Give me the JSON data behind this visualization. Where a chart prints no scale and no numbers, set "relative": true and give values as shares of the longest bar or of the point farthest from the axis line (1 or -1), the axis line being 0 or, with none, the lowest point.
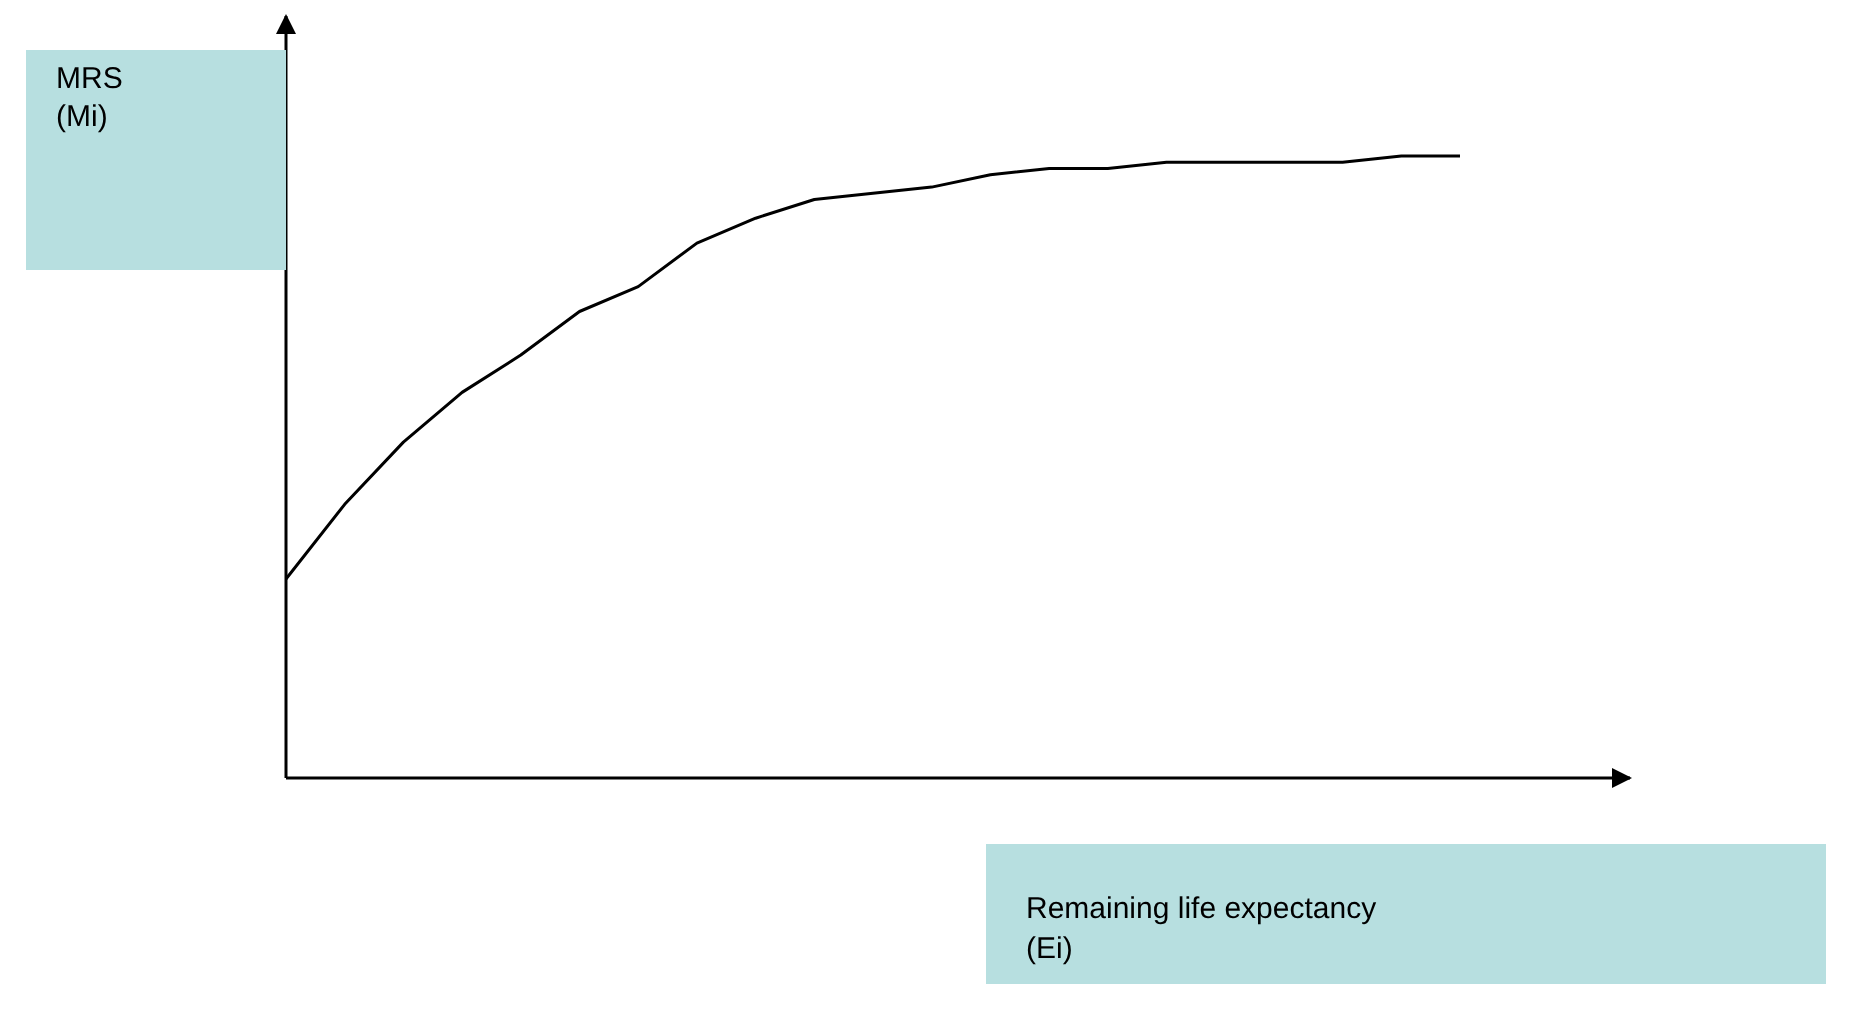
{
  "chart_data": {
    "type": "line",
    "relative": true,
    "ylabel": "MRS\n(Mi)",
    "xlabel": "Remaining life expectancy\n(Ei)",
    "categories": [
      null,
      null,
      null,
      null,
      null,
      null,
      null,
      null,
      null,
      null,
      null,
      null,
      null,
      null,
      null,
      null,
      null,
      null,
      null,
      null,
      null
    ],
    "series": [
      {
        "color": "#000000",
        "values": [
          0.32,
          0.44,
          0.54,
          0.62,
          0.68,
          0.75,
          0.79,
          0.86,
          0.9,
          0.93,
          0.94,
          0.95,
          0.97,
          0.98,
          0.98,
          0.99,
          0.99,
          0.99,
          0.99,
          1.0,
          1.0
        ]
      }
    ],
    "marker": "none",
    "line_style": "solid"
  }
}
